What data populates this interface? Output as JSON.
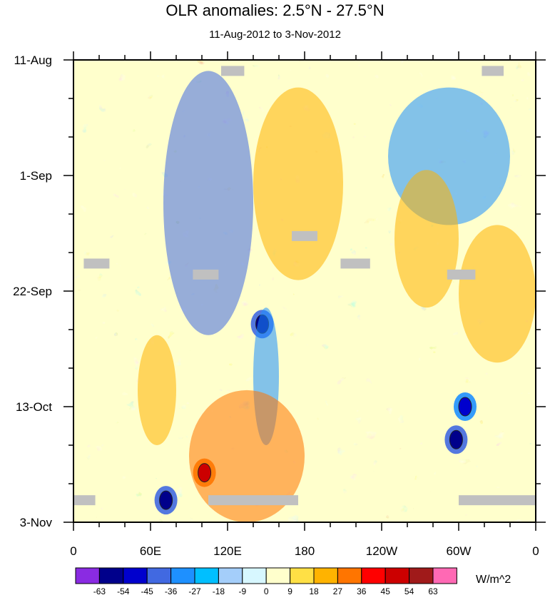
{
  "chart_data": {
    "type": "heatmap",
    "title": "OLR anomalies: 2.5°N - 27.5°N",
    "subtitle": "11-Aug-2012 to 3-Nov-2012",
    "xlabel": "",
    "ylabel": "",
    "x_tick_labels": [
      "0",
      "60E",
      "120E",
      "180",
      "120W",
      "60W",
      "0"
    ],
    "x_tick_values_deg_east": [
      0,
      60,
      120,
      180,
      240,
      300,
      360
    ],
    "y_tick_labels": [
      "11-Aug",
      "1-Sep",
      "22-Sep",
      "13-Oct",
      "3-Nov"
    ],
    "y_tick_day_offsets": [
      0,
      21,
      42,
      63,
      84
    ],
    "x_range_deg_east": [
      0,
      360
    ],
    "time_range_days": [
      0,
      84
    ],
    "colorbar": {
      "units": "W/m^2",
      "levels": [
        -63,
        -54,
        -45,
        -36,
        -27,
        -18,
        -9,
        0,
        9,
        18,
        27,
        36,
        45,
        54,
        63
      ],
      "colors": [
        "#8a2be2",
        "#00008b",
        "#0000cd",
        "#4169e1",
        "#1e90ff",
        "#00bfff",
        "#a4cefa",
        "#d7f7ff",
        "#ffffcc",
        "#ffe045",
        "#ffb300",
        "#ff7500",
        "#ff0000",
        "#cc0000",
        "#a01a1a",
        "#ff69b4"
      ]
    },
    "missing_color": "#c0c0c0",
    "features": [
      {
        "kind": "negative_band",
        "lon": [
          70,
          140
        ],
        "days": [
          2,
          50
        ],
        "value": -40
      },
      {
        "kind": "negative_minimum",
        "lon": 147,
        "day": 48,
        "value": -63
      },
      {
        "kind": "negative_band",
        "lon": [
          140,
          160
        ],
        "days": [
          45,
          70
        ],
        "value": -36
      },
      {
        "kind": "negative_minimum",
        "lon": 72,
        "day": 80,
        "value": -55
      },
      {
        "kind": "negative_minimum",
        "lon": 298,
        "day": 69,
        "value": -60
      },
      {
        "kind": "negative_minimum",
        "lon": 305,
        "day": 63,
        "value": -50
      },
      {
        "kind": "negative_band",
        "lon": [
          245,
          340
        ],
        "days": [
          5,
          30
        ],
        "value": -30
      },
      {
        "kind": "positive_region",
        "lon": [
          140,
          210
        ],
        "days": [
          5,
          40
        ],
        "value": 20
      },
      {
        "kind": "positive_region",
        "lon": [
          90,
          180
        ],
        "days": [
          60,
          84
        ],
        "value": 30
      },
      {
        "kind": "positive_maximum",
        "lon": 102,
        "day": 75,
        "value": 45
      },
      {
        "kind": "positive_region",
        "lon": [
          300,
          360
        ],
        "days": [
          30,
          55
        ],
        "value": 20
      },
      {
        "kind": "positive_region",
        "lon": [
          250,
          300
        ],
        "days": [
          20,
          45
        ],
        "value": 20
      },
      {
        "kind": "positive_region",
        "lon": [
          50,
          80
        ],
        "days": [
          50,
          70
        ],
        "value": 18
      }
    ],
    "missing_segments": [
      {
        "lon": [
          115,
          133
        ],
        "day": 2
      },
      {
        "lon": [
          318,
          335
        ],
        "day": 2
      },
      {
        "lon": [
          170,
          190
        ],
        "day": 32
      },
      {
        "lon": [
          8,
          28
        ],
        "day": 37
      },
      {
        "lon": [
          93,
          113
        ],
        "day": 39
      },
      {
        "lon": [
          208,
          231
        ],
        "day": 37
      },
      {
        "lon": [
          291,
          313
        ],
        "day": 39
      },
      {
        "lon": [
          0,
          17
        ],
        "day": 80
      },
      {
        "lon": [
          105,
          175
        ],
        "day": 80
      },
      {
        "lon": [
          300,
          360
        ],
        "day": 80
      }
    ]
  }
}
